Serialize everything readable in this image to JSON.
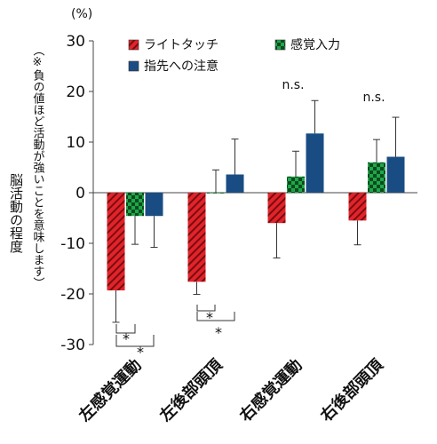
{
  "chart_data": {
    "type": "bar",
    "unit_label": "(%)",
    "ylabel": "脳活動の程度",
    "ylabel_note": "（※負の値ほど活動が強いことを意味します）",
    "ylim": [
      -30,
      30
    ],
    "yticks": [
      "30",
      "20",
      "10",
      "0",
      "-10",
      "-20",
      "-30"
    ],
    "tick_values": [
      30,
      20,
      10,
      0,
      -10,
      -20,
      -30
    ],
    "categories": [
      "左感覚運動",
      "左後部頭頂",
      "右感覚運動",
      "右後部頭頂"
    ],
    "series": [
      {
        "name": "ライトタッチ",
        "color": "#e0242a",
        "pattern": "diagonal-stripes",
        "values": [
          -19.3,
          -17.6,
          -6.0,
          -5.5
        ],
        "errors": [
          6.3,
          2.5,
          6.9,
          4.8
        ]
      },
      {
        "name": "感覚入力",
        "color": "#1fa84a",
        "pattern": "checker",
        "values": [
          -4.6,
          0.0,
          3.2,
          6.0
        ],
        "errors": [
          5.6,
          4.5,
          5.0,
          4.5
        ]
      },
      {
        "name": "指先への注意",
        "color": "#1a4c84",
        "pattern": "solid",
        "values": [
          -4.6,
          3.6,
          11.7,
          7.1
        ],
        "errors": [
          6.2,
          7.0,
          6.5,
          7.8
        ]
      }
    ],
    "significance": [
      {
        "category": 0,
        "label": "*"
      },
      {
        "category": 0,
        "label": "*"
      },
      {
        "category": 1,
        "label": "*"
      },
      {
        "category": 1,
        "label": "*"
      },
      {
        "category": 2,
        "label": "n.s."
      },
      {
        "category": 3,
        "label": "n.s."
      }
    ]
  }
}
